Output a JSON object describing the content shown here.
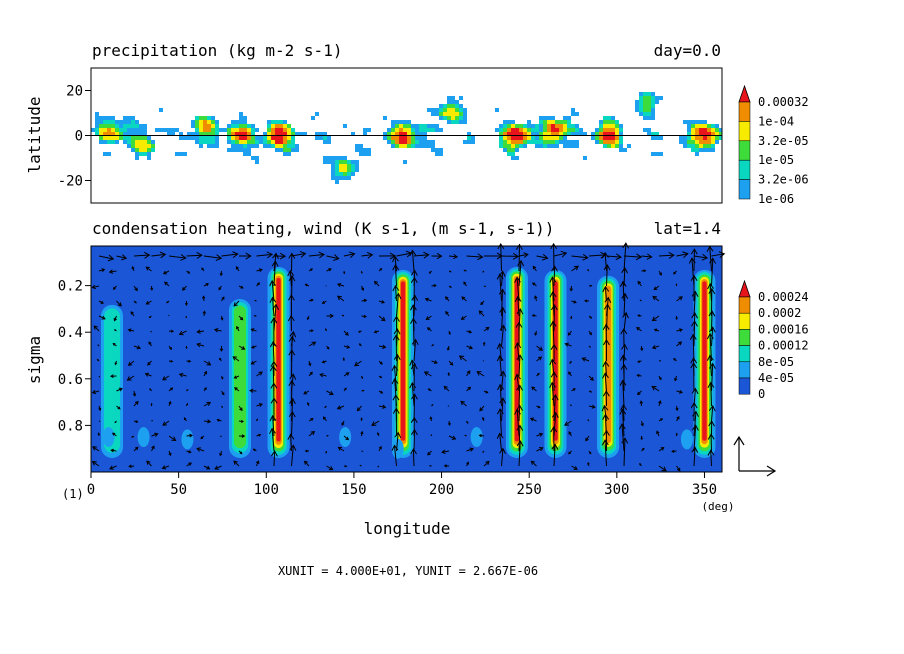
{
  "chart_data": [
    {
      "type": "heatmap",
      "title": "precipitation (kg m-2 s-1)",
      "corner_label": "day=0.0",
      "ylabel": "latitude",
      "xlim": [
        0,
        360
      ],
      "ylim": [
        -30,
        30
      ],
      "yticks": [
        "20",
        "0",
        "-20"
      ],
      "zero_line": true,
      "colorbar": {
        "levels": [
          "0.00032",
          "1e-04",
          "3.2e-05",
          "1e-05",
          "3.2e-06",
          "1e-06"
        ],
        "colors": [
          "#e8141c",
          "#f08c00",
          "#f7ec00",
          "#3ddc3a",
          "#0ad7c0",
          "#1ea0f0"
        ]
      },
      "field_colors": [
        "#ffffff",
        "#1ea0f0",
        "#0ad7c0",
        "#3ddc3a",
        "#f7ec00",
        "#f08c00",
        "#e8141c"
      ],
      "rain_centers": [
        {
          "lon": 12,
          "lat": 2,
          "strength": 0.6
        },
        {
          "lon": 30,
          "lat": -5,
          "strength": 0.5
        },
        {
          "lon": 65,
          "lat": 3,
          "strength": 0.55
        },
        {
          "lon": 85,
          "lat": 0,
          "strength": 0.7
        },
        {
          "lon": 107,
          "lat": 0,
          "strength": 1.0
        },
        {
          "lon": 145,
          "lat": -15,
          "strength": 0.5
        },
        {
          "lon": 178,
          "lat": 0,
          "strength": 0.85
        },
        {
          "lon": 205,
          "lat": 10,
          "strength": 0.5
        },
        {
          "lon": 243,
          "lat": 0,
          "strength": 1.0
        },
        {
          "lon": 265,
          "lat": 2,
          "strength": 0.9
        },
        {
          "lon": 295,
          "lat": 0,
          "strength": 0.8
        },
        {
          "lon": 318,
          "lat": 15,
          "strength": 0.5
        },
        {
          "lon": 350,
          "lat": 0,
          "strength": 0.95
        }
      ]
    },
    {
      "type": "heatmap",
      "title": "condensation heating, wind (K s-1, (m s-1, s-1))",
      "corner_label": "lat=1.4",
      "xlabel": "longitude",
      "ylabel": "sigma",
      "xlim": [
        0,
        360
      ],
      "ylim": [
        0.03,
        1.0
      ],
      "y_inverted": true,
      "xticks": [
        "0",
        "50",
        "100",
        "150",
        "200",
        "250",
        "300",
        "350"
      ],
      "yticks": [
        "0.2",
        "0.4",
        "0.6",
        "0.8"
      ],
      "x_unit_label": "(deg)",
      "panel_index_label": "(1)",
      "colorbar": {
        "levels": [
          "0.00024",
          "0.0002",
          "0.00016",
          "0.00012",
          "8e-05",
          "4e-05",
          "0"
        ],
        "colors": [
          "#e8141c",
          "#f08c00",
          "#f7ec00",
          "#3ddc3a",
          "#0ad7c0",
          "#1ea0f0",
          "#1a56d6"
        ]
      },
      "heating_columns": [
        {
          "lon": 12,
          "strength": 0.35
        },
        {
          "lon": 85,
          "strength": 0.45
        },
        {
          "lon": 107,
          "strength": 1.0
        },
        {
          "lon": 178,
          "strength": 0.95
        },
        {
          "lon": 243,
          "strength": 1.0
        },
        {
          "lon": 265,
          "strength": 0.95
        },
        {
          "lon": 295,
          "strength": 0.85
        },
        {
          "lon": 350,
          "strength": 0.95
        }
      ],
      "vector_unit_label": "XUNIT = 4.000E+01, YUNIT = 2.667E-06"
    }
  ]
}
